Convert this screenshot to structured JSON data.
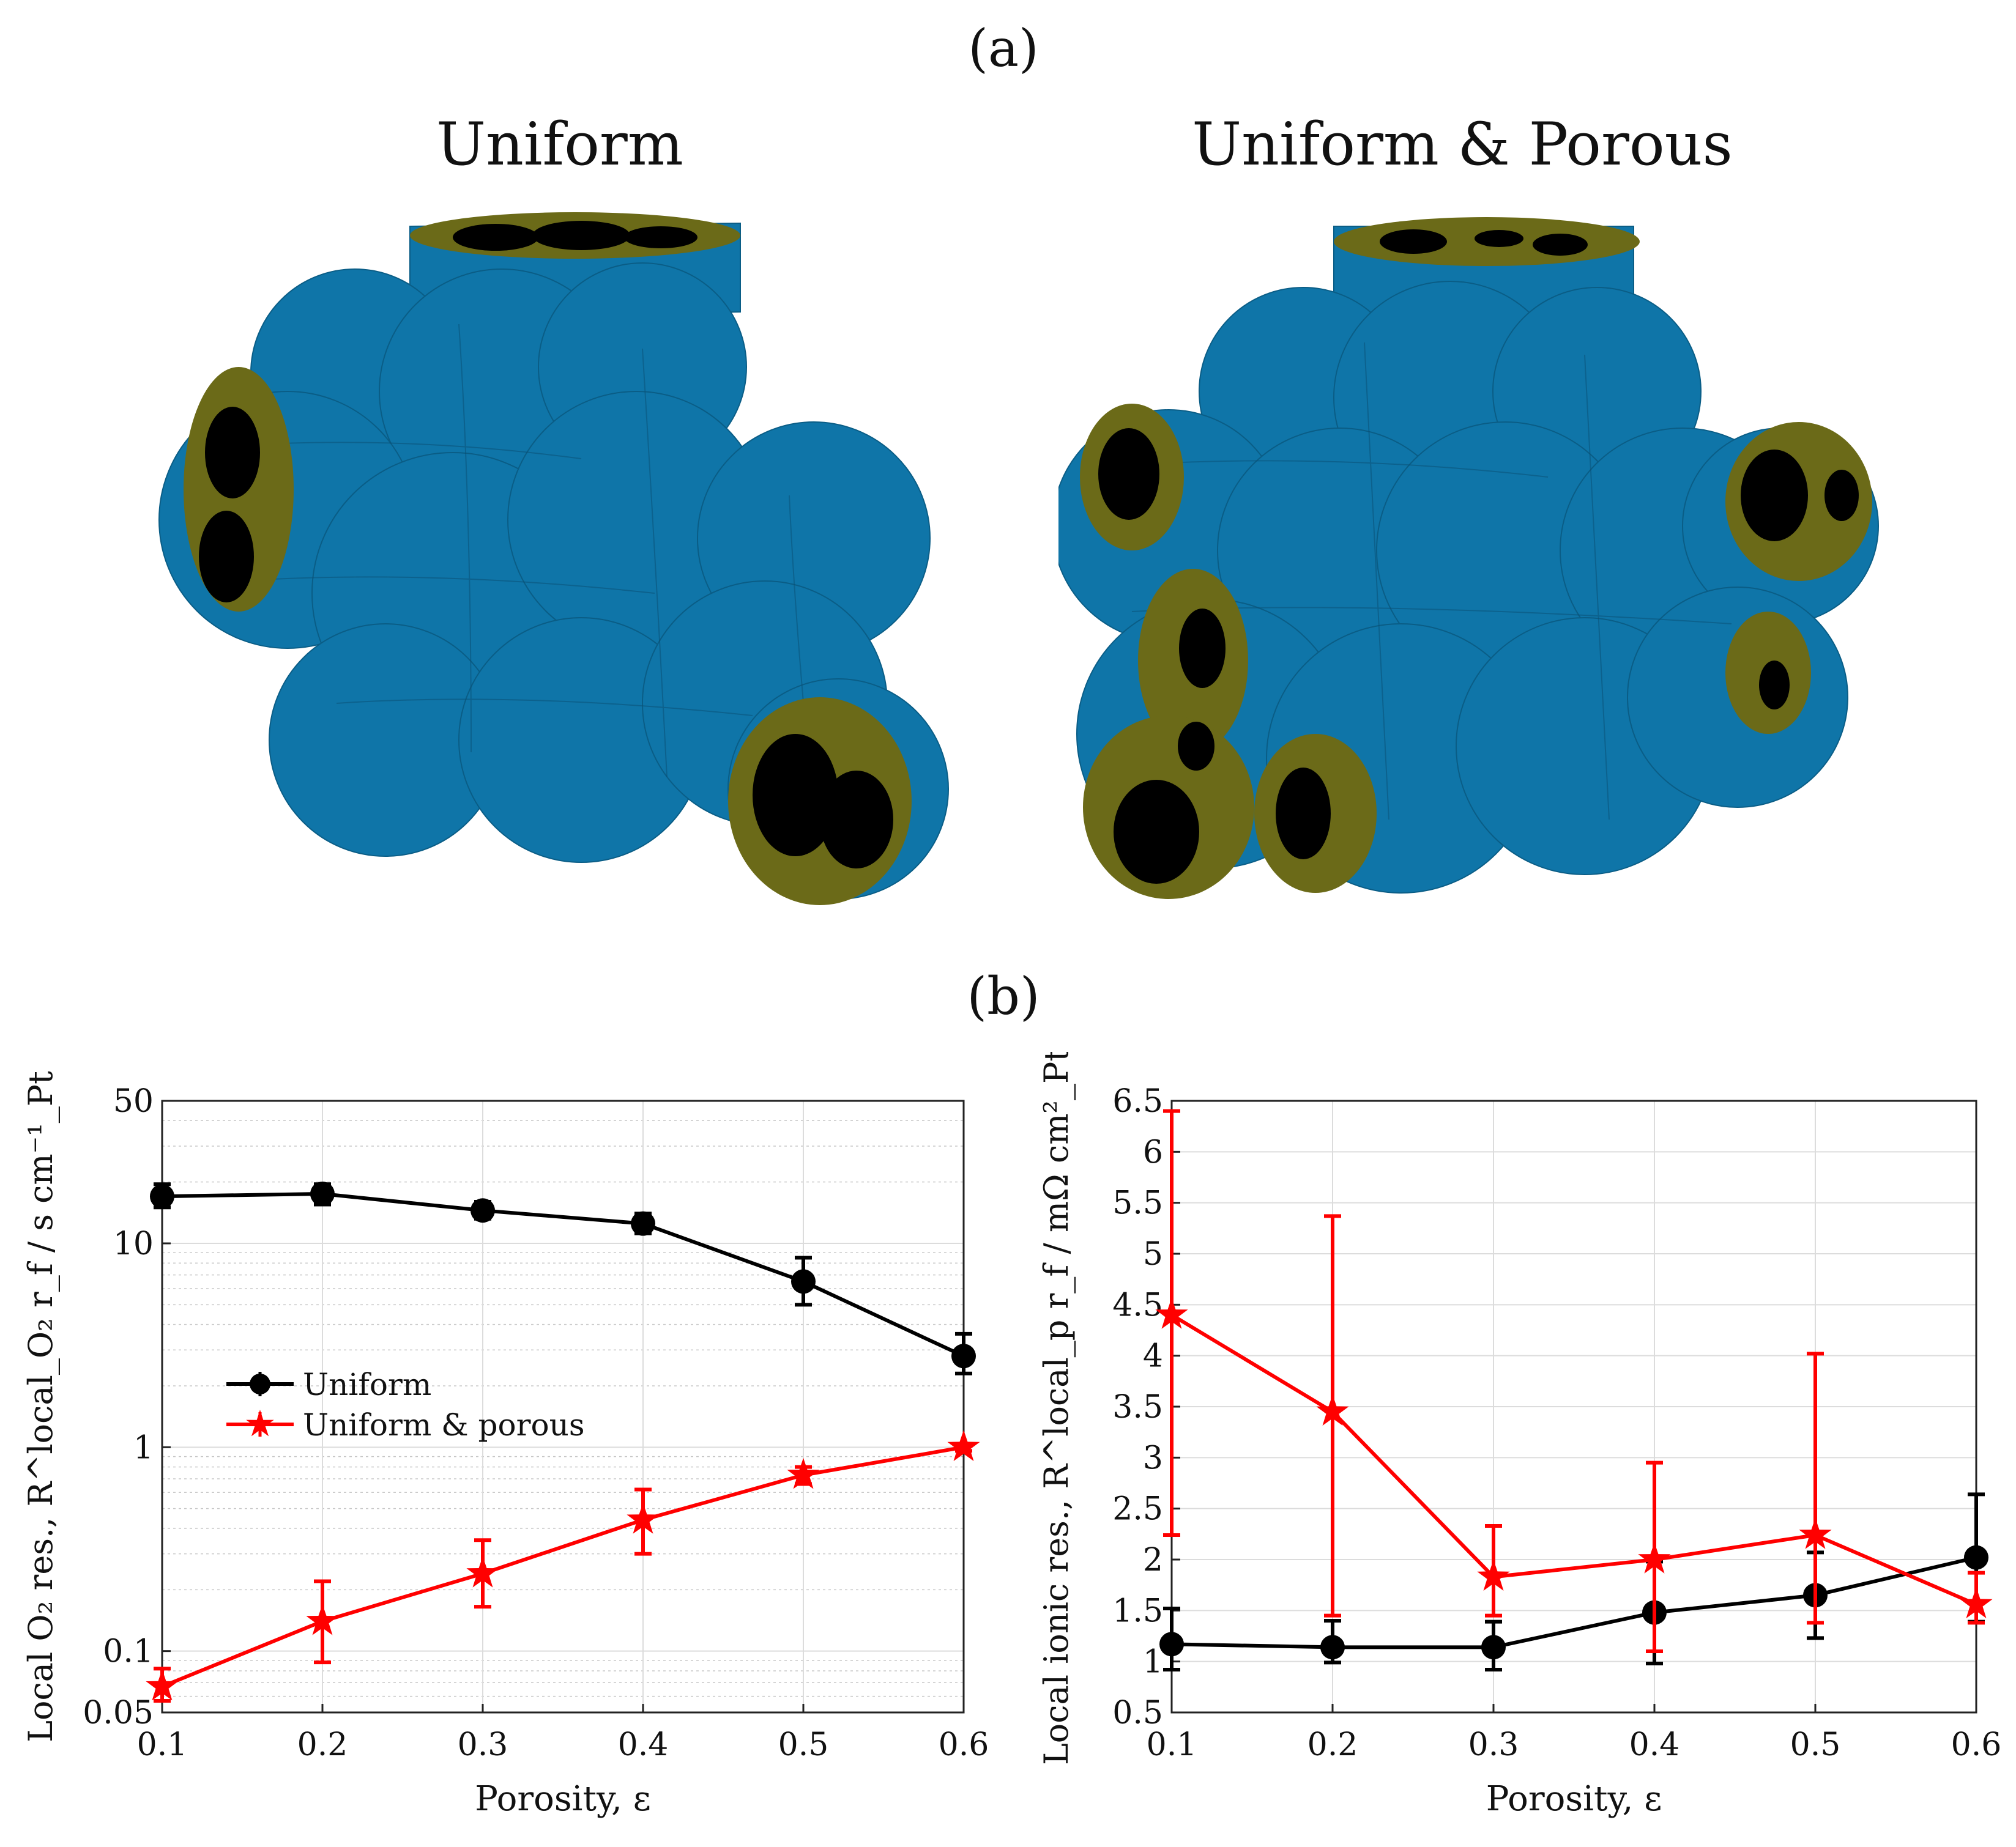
{
  "panel_a": {
    "label": "(a)",
    "left_title": "Uniform",
    "right_title": "Uniform & Porous",
    "colors": {
      "solid": "#0f75a8",
      "ionomer": "#6b6a18",
      "pore": "#000000"
    }
  },
  "panel_b": {
    "label": "(b)"
  },
  "chart_data": [
    {
      "type": "line",
      "yscale": "log",
      "x": [
        0.1,
        0.2,
        0.3,
        0.4,
        0.5,
        0.6
      ],
      "xlim": [
        0.1,
        0.6
      ],
      "ylim": [
        0.05,
        50
      ],
      "xticks": [
        "0.1",
        "0.2",
        "0.3",
        "0.4",
        "0.5",
        "0.6"
      ],
      "yticks": [
        "0.05",
        "0.1",
        "1",
        "10",
        "50"
      ],
      "xlabel": "Porosity, ε",
      "ylabel": "Local O₂ res., R^local_O₂ r_f / s cm⁻¹_Pt",
      "legend_position": "center-left",
      "grid": true,
      "series": [
        {
          "name": "Uniform",
          "color": "#000000",
          "marker": "circle",
          "values": [
            17,
            17.5,
            14.5,
            12.5,
            6.5,
            2.8
          ],
          "err_low": [
            15,
            15.5,
            13.2,
            11.2,
            5.0,
            2.3
          ],
          "err_high": [
            19.5,
            19.5,
            16,
            14,
            8.5,
            3.6
          ]
        },
        {
          "name": "Uniform & porous",
          "color": "#ff0000",
          "marker": "star",
          "values": [
            0.067,
            0.14,
            0.24,
            0.44,
            0.73,
            1.0
          ],
          "err_low": [
            0.057,
            0.088,
            0.165,
            0.3,
            0.66,
            0.96
          ],
          "err_high": [
            0.082,
            0.22,
            0.35,
            0.62,
            0.8,
            1.03
          ]
        }
      ]
    },
    {
      "type": "line",
      "yscale": "linear",
      "x": [
        0.1,
        0.2,
        0.3,
        0.4,
        0.5,
        0.6
      ],
      "xlim": [
        0.1,
        0.6
      ],
      "ylim": [
        0.5,
        6.5
      ],
      "xticks": [
        "0.1",
        "0.2",
        "0.3",
        "0.4",
        "0.5",
        "0.6"
      ],
      "yticks": [
        "0.5",
        "1",
        "1.5",
        "2",
        "2.5",
        "3",
        "3.5",
        "4",
        "4.5",
        "5",
        "5.5",
        "6",
        "6.5"
      ],
      "xlabel": "Porosity, ε",
      "ylabel": "Local ionic res., R^local_p r_f / mΩ cm²_Pt",
      "grid": true,
      "series": [
        {
          "name": "Uniform",
          "color": "#000000",
          "marker": "circle",
          "values": [
            1.17,
            1.14,
            1.14,
            1.48,
            1.65,
            2.02
          ],
          "err_low": [
            0.92,
            0.99,
            0.92,
            0.98,
            1.23,
            1.39
          ],
          "err_high": [
            1.52,
            1.4,
            1.39,
            1.98,
            2.07,
            2.64
          ]
        },
        {
          "name": "Uniform & porous",
          "color": "#ff0000",
          "marker": "star",
          "values": [
            4.4,
            3.45,
            1.83,
            2.0,
            2.24,
            1.56
          ],
          "err_low": [
            2.24,
            1.45,
            1.45,
            1.1,
            1.38,
            1.38
          ],
          "err_high": [
            6.4,
            5.37,
            2.33,
            2.95,
            4.02,
            1.87
          ]
        }
      ]
    }
  ]
}
